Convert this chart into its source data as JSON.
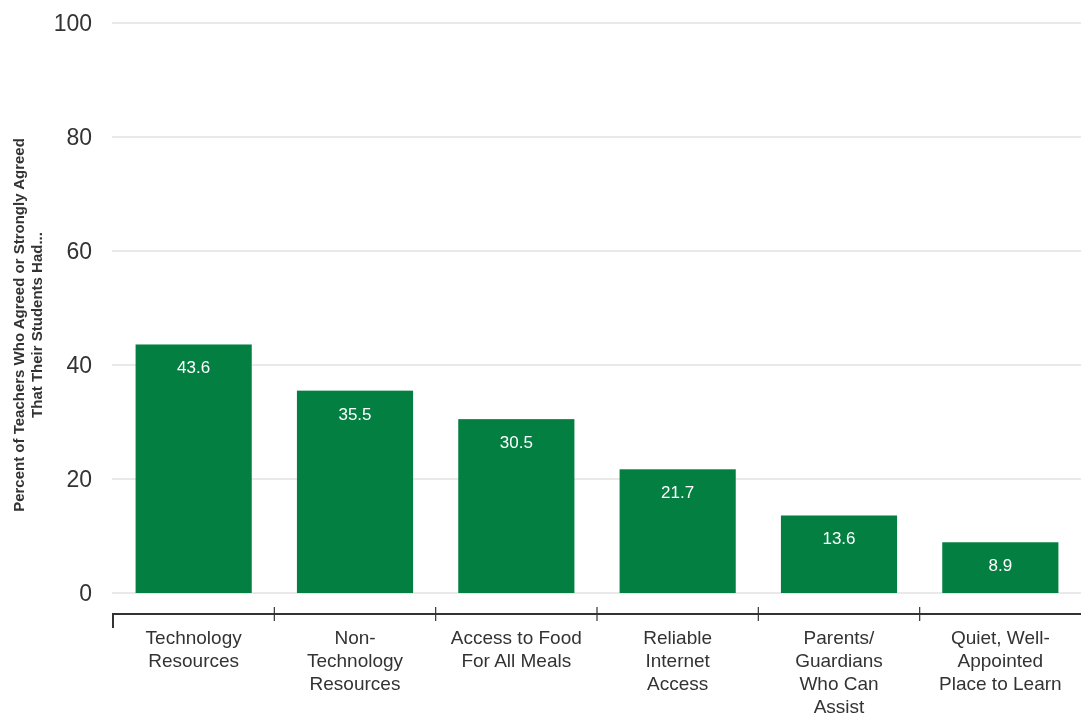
{
  "chart_data": {
    "type": "bar",
    "categories": [
      "Technology\nResources",
      "Non-\nTechnology\nResources",
      "Access to Food\nFor All Meals",
      "Reliable\nInternet\nAccess",
      "Parents/\nGuardians\nWho Can\nAssist",
      "Quiet, Well-\nAppointed\nPlace to Learn"
    ],
    "values": [
      43.6,
      35.5,
      30.5,
      21.7,
      13.6,
      8.9
    ],
    "color": "#037f41",
    "ylabel": "Percent of Teachers Who Agreed or Strongly Agreed\nThat Their Students Had...",
    "ylim": [
      0,
      100
    ],
    "yticks": [
      0,
      20,
      40,
      60,
      80,
      100
    ],
    "grid": "y",
    "data_labels": true
  }
}
